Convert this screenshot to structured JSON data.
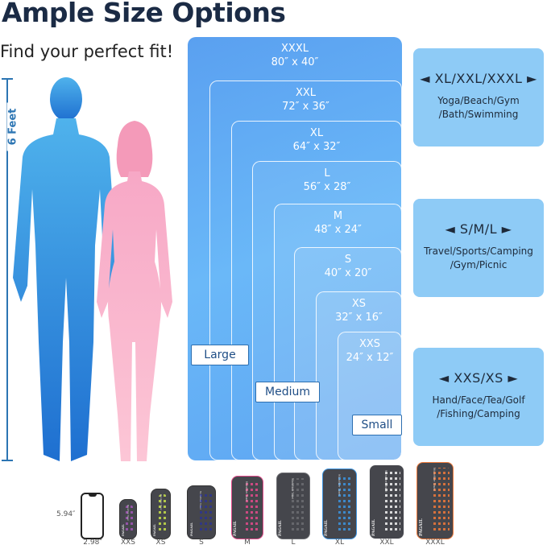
{
  "header": {
    "title": "Ample Size Options",
    "subtitle": "Find your perfect fit!",
    "height_label": "6 Feet"
  },
  "sizes": [
    {
      "name": "XXXL",
      "dims": "80″ x 40″"
    },
    {
      "name": "XXL",
      "dims": "72″ x 36″"
    },
    {
      "name": "XL",
      "dims": "64″ x 32″"
    },
    {
      "name": "L",
      "dims": "56″ x 28″"
    },
    {
      "name": "M",
      "dims": "48″ x 24″"
    },
    {
      "name": "S",
      "dims": "40″ x 20″"
    },
    {
      "name": "XS",
      "dims": "32″ x 16″"
    },
    {
      "name": "XXS",
      "dims": "24″ x 12″"
    }
  ],
  "groups": {
    "large": "Large",
    "medium": "Medium",
    "small": "Small"
  },
  "panels": [
    {
      "heading": "◄ XL/XXL/XXXL ►",
      "uses": "Yoga/Beach/Gym /Bath/Swimming"
    },
    {
      "heading": "◄   S/M/L   ►",
      "uses": "Travel/Sports/Camping /Gym/Picnic"
    },
    {
      "heading": "◄  XXS/XS  ►",
      "uses": "Hand/Face/Tea/Golf /Fishing/Camping"
    }
  ],
  "comparison": {
    "phone_height": "5.94″",
    "phone_width": "2.98″",
    "brand": "PAGAIL",
    "product": "Microfiber Towel",
    "towels": [
      {
        "label": "XXS",
        "color": "#a356b8"
      },
      {
        "label": "XS",
        "color": "#c6e04a"
      },
      {
        "label": "S",
        "color": "#2d3590"
      },
      {
        "label": "M",
        "color": "#e54b8c"
      },
      {
        "label": "L",
        "color": "#6d6e72"
      },
      {
        "label": "XL",
        "color": "#3d94e0"
      },
      {
        "label": "XXL",
        "color": "#f2f2f2"
      },
      {
        "label": "XXXL",
        "color": "#f07a3a"
      }
    ]
  },
  "colors": {
    "man": "#2f8ee0",
    "woman": "#f6a8c4",
    "panel": "#8ecbf6",
    "title": "#1b2b45"
  }
}
